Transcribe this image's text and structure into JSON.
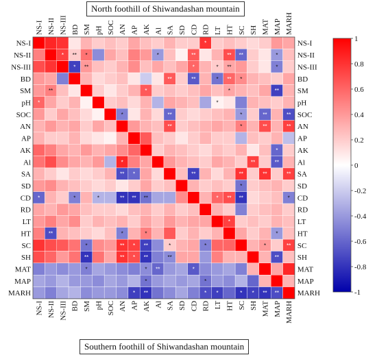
{
  "chart_data": {
    "type": "heatmap",
    "top_title": "North foothill of Shiwandashan mountain",
    "bottom_title": "Southern foothill of Shiwandashan mountain",
    "variables": [
      "NS-I",
      "NS-II",
      "NS-III",
      "BD",
      "SM",
      "pH",
      "SOC",
      "AN",
      "AP",
      "AK",
      "Al",
      "SA",
      "SD",
      "CD",
      "RD",
      "LT",
      "HT",
      "SC",
      "SH",
      "MAT",
      "MAP",
      "MARH"
    ],
    "note": "Upper triangle = north foothill correlations (labels top & right); lower triangle = southern foothill correlations (labels left & bottom). Diagonal cells = 1.",
    "matrix": [
      [
        1,
        0.85,
        0.8,
        0.1,
        0.3,
        0.2,
        0.25,
        0.2,
        0.35,
        0.25,
        0.2,
        0.3,
        0.2,
        0.2,
        0.8,
        0.2,
        0.25,
        0.2,
        0.15,
        0.2,
        0.4,
        0.35
      ],
      [
        0.5,
        1,
        0.75,
        0.2,
        0.55,
        -0.45,
        0.35,
        0.25,
        0.5,
        0.4,
        -0.4,
        0.25,
        0.05,
        0.65,
        0.1,
        0.3,
        0.7,
        -0.6,
        0.2,
        0.1,
        -0.4,
        0.25
      ],
      [
        0.7,
        0.8,
        1,
        -0.75,
        0.4,
        0.25,
        0.2,
        0.3,
        0.45,
        0.25,
        0.35,
        0.25,
        0.35,
        0.6,
        0.3,
        0.2,
        0.35,
        0.4,
        0.2,
        0.1,
        -0.5,
        0.2
      ],
      [
        0.4,
        0.35,
        -0.5,
        1,
        0.3,
        0.15,
        0.2,
        0.25,
        0.1,
        -0.2,
        0.1,
        0.65,
        0.2,
        -0.65,
        0.3,
        -0.55,
        0.6,
        0.45,
        0.3,
        0.25,
        0.2,
        0.35
      ],
      [
        0.4,
        0.5,
        0.25,
        0.1,
        1,
        0.2,
        0.1,
        0.2,
        0.3,
        0.65,
        0.2,
        0.25,
        0.2,
        0.25,
        0.35,
        0.25,
        0.35,
        0.3,
        0.25,
        0.35,
        -0.75,
        0.3
      ],
      [
        0.6,
        0.35,
        0.2,
        0.3,
        0.05,
        1,
        0.2,
        0.25,
        0.15,
        0.3,
        -0.3,
        0.35,
        0.3,
        0.25,
        -0.35,
        0.05,
        0.1,
        -0.5,
        0.3,
        0.25,
        0.2,
        0.3
      ],
      [
        0.4,
        0.2,
        0.35,
        0.25,
        0.15,
        0.05,
        1,
        -0.5,
        0.1,
        0.3,
        0.15,
        -0.6,
        0.2,
        0.15,
        0.2,
        0.25,
        0.3,
        -0.4,
        0.2,
        -0.6,
        0.3,
        -0.7
      ],
      [
        0.3,
        0.4,
        0.3,
        0.35,
        0.2,
        0.35,
        0.25,
        1,
        0.4,
        0.3,
        0.25,
        0.7,
        0.2,
        0.25,
        0.3,
        0.35,
        0.3,
        0.5,
        0.3,
        0.7,
        0.3,
        0.75
      ],
      [
        0.3,
        0.2,
        0.2,
        0.3,
        0.15,
        0.1,
        0.05,
        0.3,
        1,
        0.65,
        0.25,
        0.2,
        0.1,
        0.2,
        0.3,
        0.2,
        0.2,
        -0.3,
        0.25,
        0.2,
        0.3,
        -0.25
      ],
      [
        0.6,
        0.5,
        0.35,
        0.3,
        0.4,
        0.3,
        0.35,
        0.45,
        0.6,
        1,
        0.2,
        0.3,
        0.25,
        0.2,
        0.15,
        0.25,
        0.2,
        0.3,
        0.1,
        0.25,
        -0.6,
        0.2
      ],
      [
        0.55,
        0.7,
        0.45,
        0.35,
        0.3,
        0.4,
        -0.3,
        0.85,
        0.5,
        0.35,
        1,
        0.4,
        0.3,
        0.25,
        0.2,
        0.35,
        0.3,
        0.2,
        0.75,
        0.2,
        -0.65,
        0.3
      ],
      [
        0.3,
        0.2,
        0.1,
        0.2,
        0.15,
        0.2,
        0.3,
        -0.7,
        -0.6,
        0.35,
        0.15,
        1,
        0.25,
        -0.75,
        0.3,
        0.15,
        0.3,
        0.8,
        0.2,
        0.8,
        0.2,
        0.75
      ],
      [
        0.4,
        0.45,
        0.3,
        0.25,
        0.2,
        0.15,
        0.2,
        0.1,
        0.2,
        0.35,
        0.2,
        0.25,
        1,
        0.3,
        0.2,
        0.25,
        0.2,
        -0.55,
        0.2,
        0.25,
        0.3,
        0.2
      ],
      [
        -0.6,
        0.3,
        0.2,
        -0.5,
        0.3,
        -0.3,
        -0.3,
        -0.8,
        -0.8,
        -0.55,
        -0.35,
        -0.35,
        0.45,
        1,
        0.3,
        0.6,
        0.7,
        -0.8,
        0.15,
        0.2,
        0.25,
        -0.5
      ],
      [
        0.35,
        0.3,
        0.4,
        0.35,
        0.25,
        0.2,
        0.2,
        0.15,
        0.25,
        0.3,
        0.2,
        0.3,
        0.2,
        0.25,
        1,
        0.3,
        0.2,
        -0.5,
        0.2,
        0.25,
        0.3,
        0.2
      ],
      [
        0.4,
        0.5,
        0.35,
        0.45,
        0.2,
        0.3,
        0.25,
        0.3,
        0.2,
        0.35,
        0.25,
        0.4,
        0.3,
        0.35,
        0.35,
        1,
        0.75,
        0.2,
        0.25,
        0.2,
        0.3,
        0.25
      ],
      [
        0.5,
        -0.7,
        0.3,
        0.25,
        0.2,
        0.15,
        0.25,
        -0.5,
        0.3,
        0.5,
        0.3,
        0.65,
        0.2,
        0.3,
        0.2,
        0.3,
        1,
        0.35,
        0.2,
        0.3,
        -0.4,
        0.25
      ],
      [
        0.8,
        0.7,
        0.65,
        0.55,
        -0.55,
        0.45,
        0.4,
        0.8,
        0.75,
        -0.75,
        -0.45,
        0.2,
        0.3,
        0.35,
        -0.5,
        0.6,
        0.6,
        1,
        0.3,
        0.4,
        0.2,
        0.75
      ],
      [
        0.7,
        0.6,
        0.4,
        0.55,
        -0.8,
        0.55,
        0.35,
        0.8,
        0.7,
        -0.8,
        -0.5,
        -0.45,
        0.35,
        0.35,
        -0.4,
        0.5,
        0.3,
        0.3,
        1,
        0.3,
        -0.7,
        0.25
      ],
      [
        -0.5,
        -0.4,
        -0.45,
        -0.4,
        -0.5,
        -0.35,
        -0.4,
        -0.45,
        -0.5,
        -0.45,
        -0.6,
        -0.4,
        -0.35,
        -0.65,
        -0.45,
        -0.4,
        -0.35,
        -0.5,
        0.3,
        1,
        0.35,
        0.85
      ],
      [
        -0.35,
        -0.4,
        -0.3,
        -0.4,
        -0.4,
        -0.45,
        -0.35,
        -0.4,
        -0.3,
        -0.55,
        -0.4,
        -0.35,
        -0.4,
        -0.35,
        -0.55,
        -0.4,
        -0.45,
        -0.3,
        -0.6,
        0.3,
        1,
        0.3
      ],
      [
        -0.4,
        -0.5,
        -0.35,
        -0.3,
        -0.45,
        -0.4,
        -0.4,
        -0.45,
        -0.75,
        -0.8,
        -0.55,
        -0.45,
        -0.35,
        -0.5,
        -0.7,
        -0.75,
        -0.6,
        -0.8,
        -0.75,
        -0.8,
        -0.7,
        1
      ]
    ],
    "significance": [
      [
        0,
        0,
        0,
        0,
        0,
        0,
        0,
        0,
        0,
        0,
        0,
        0,
        0,
        0,
        1,
        0,
        0,
        0,
        0,
        0,
        0,
        0
      ],
      [
        0,
        0,
        1,
        2,
        1,
        0,
        0,
        0,
        0,
        0,
        1,
        0,
        0,
        2,
        0,
        0,
        2,
        2,
        0,
        0,
        1,
        0
      ],
      [
        0,
        0,
        0,
        1,
        2,
        0,
        0,
        0,
        0,
        0,
        0,
        0,
        0,
        1,
        0,
        1,
        2,
        0,
        0,
        0,
        1,
        0
      ],
      [
        0,
        0,
        0,
        0,
        0,
        0,
        0,
        0,
        0,
        0,
        0,
        2,
        0,
        2,
        0,
        1,
        2,
        1,
        0,
        0,
        0,
        0
      ],
      [
        0,
        2,
        0,
        0,
        0,
        0,
        0,
        0,
        0,
        1,
        0,
        0,
        0,
        0,
        0,
        0,
        1,
        0,
        0,
        0,
        2,
        0
      ],
      [
        1,
        0,
        0,
        0,
        0,
        0,
        0,
        0,
        0,
        0,
        0,
        0,
        0,
        0,
        0,
        1,
        0,
        0,
        0,
        0,
        0,
        0
      ],
      [
        0,
        0,
        0,
        0,
        0,
        0,
        0,
        1,
        0,
        0,
        0,
        2,
        0,
        0,
        0,
        0,
        0,
        1,
        0,
        2,
        0,
        2
      ],
      [
        0,
        0,
        0,
        0,
        0,
        0,
        0,
        0,
        0,
        0,
        0,
        2,
        0,
        0,
        0,
        0,
        0,
        1,
        0,
        2,
        0,
        2
      ],
      [
        0,
        0,
        0,
        0,
        0,
        0,
        0,
        0,
        0,
        0,
        0,
        0,
        0,
        0,
        0,
        0,
        0,
        0,
        0,
        0,
        0,
        0
      ],
      [
        0,
        0,
        0,
        0,
        0,
        0,
        0,
        0,
        0,
        0,
        0,
        0,
        0,
        0,
        0,
        0,
        0,
        0,
        0,
        0,
        1,
        0
      ],
      [
        0,
        0,
        0,
        0,
        0,
        0,
        0,
        1,
        0,
        0,
        0,
        0,
        0,
        0,
        0,
        0,
        0,
        0,
        2,
        0,
        2,
        0
      ],
      [
        0,
        0,
        0,
        0,
        0,
        0,
        0,
        2,
        1,
        0,
        0,
        0,
        0,
        2,
        0,
        0,
        0,
        2,
        0,
        2,
        0,
        2
      ],
      [
        0,
        0,
        0,
        0,
        0,
        0,
        0,
        0,
        0,
        0,
        0,
        0,
        0,
        0,
        0,
        0,
        0,
        1,
        0,
        0,
        0,
        0
      ],
      [
        1,
        0,
        0,
        1,
        0,
        1,
        0,
        2,
        2,
        2,
        0,
        0,
        0,
        0,
        0,
        1,
        2,
        2,
        0,
        0,
        0,
        1
      ],
      [
        0,
        0,
        0,
        0,
        0,
        0,
        0,
        0,
        0,
        0,
        0,
        0,
        0,
        0,
        0,
        0,
        0,
        0,
        0,
        0,
        0,
        0
      ],
      [
        0,
        0,
        0,
        0,
        0,
        0,
        0,
        0,
        0,
        0,
        0,
        0,
        0,
        0,
        0,
        0,
        1,
        0,
        0,
        0,
        0,
        0
      ],
      [
        0,
        2,
        0,
        0,
        0,
        0,
        0,
        1,
        0,
        1,
        0,
        0,
        0,
        0,
        0,
        0,
        0,
        0,
        0,
        0,
        1,
        0
      ],
      [
        0,
        0,
        0,
        0,
        1,
        0,
        0,
        2,
        1,
        2,
        0,
        1,
        0,
        0,
        1,
        0,
        0,
        0,
        0,
        1,
        0,
        2
      ],
      [
        0,
        0,
        0,
        0,
        2,
        0,
        0,
        2,
        1,
        2,
        0,
        2,
        0,
        0,
        0,
        0,
        0,
        0,
        0,
        0,
        2,
        0
      ],
      [
        0,
        0,
        0,
        0,
        1,
        0,
        0,
        0,
        0,
        1,
        2,
        0,
        0,
        1,
        0,
        0,
        0,
        0,
        0,
        0,
        0,
        0
      ],
      [
        0,
        0,
        0,
        0,
        0,
        0,
        0,
        0,
        0,
        1,
        0,
        0,
        0,
        0,
        1,
        0,
        0,
        0,
        0,
        0,
        0,
        0
      ],
      [
        0,
        0,
        0,
        0,
        0,
        0,
        0,
        0,
        1,
        2,
        0,
        0,
        0,
        0,
        1,
        1,
        0,
        1,
        1,
        2,
        2,
        0
      ]
    ],
    "colorbar": {
      "min": -1,
      "max": 1,
      "ticks": [
        "1",
        "0.8",
        "0.6",
        "0.4",
        "0.2",
        "0",
        "-0.2",
        "-0.4",
        "-0.6",
        "-0.8",
        "-1"
      ],
      "colors": {
        "high": "#ff0000",
        "mid": "#ffffff",
        "low": "#0000aa"
      }
    },
    "legend_placement": "right"
  }
}
